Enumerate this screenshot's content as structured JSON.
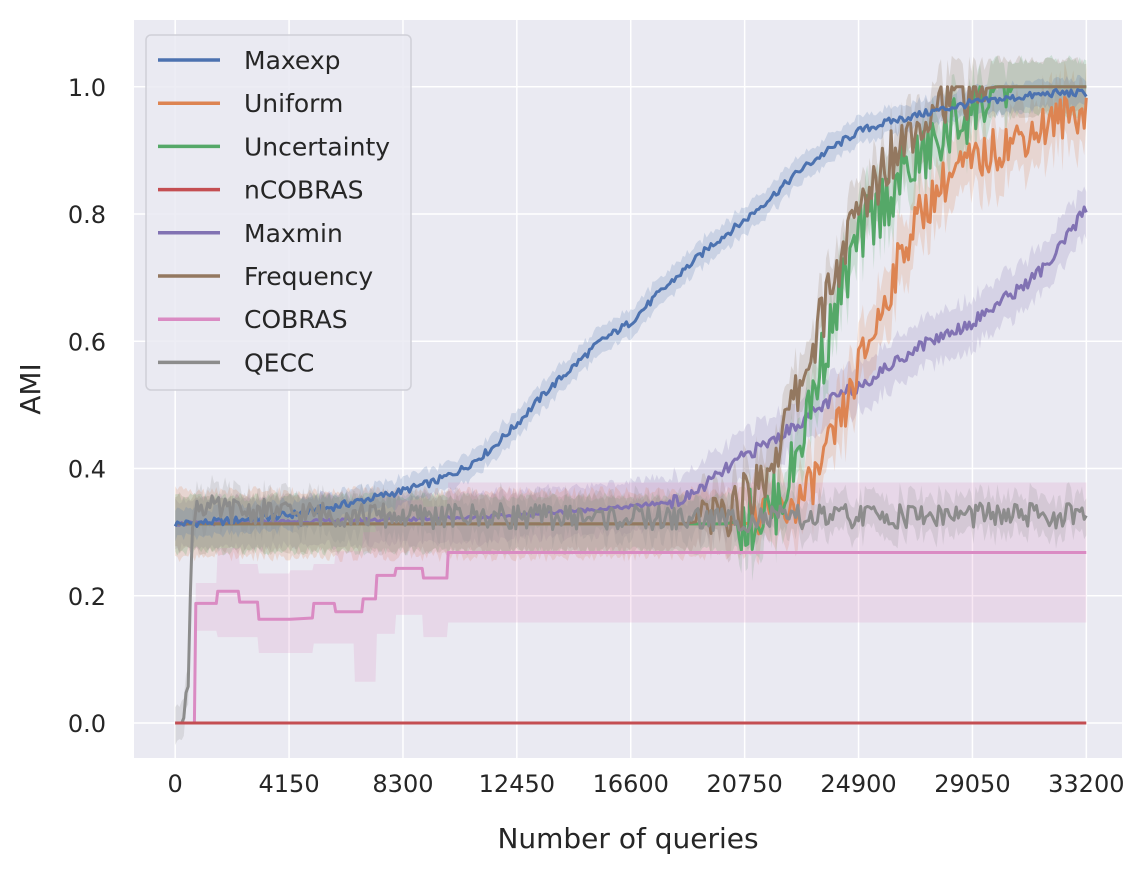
{
  "chart_data": {
    "type": "line",
    "xlabel": "Number of queries",
    "ylabel": "AMI",
    "xlim": [
      -1500,
      34500
    ],
    "ylim": [
      -0.055,
      1.105
    ],
    "xticks": [
      0,
      4150,
      8300,
      12450,
      16600,
      20750,
      24900,
      29050,
      33200
    ],
    "yticks": [
      0.0,
      0.2,
      0.4,
      0.6,
      0.8,
      1.0
    ],
    "ytick_labels": [
      "0.0",
      "0.2",
      "0.4",
      "0.6",
      "0.8",
      "1.0"
    ],
    "grid": true,
    "background": "#eaeaf2",
    "legend_position": "upper-left",
    "series": [
      {
        "name": "Maxexp",
        "color": "#4c72b0",
        "points": [
          [
            0,
            0.313
          ],
          [
            1000,
            0.315
          ],
          [
            2000,
            0.318
          ],
          [
            3000,
            0.322
          ],
          [
            4150,
            0.327
          ],
          [
            5000,
            0.333
          ],
          [
            6000,
            0.342
          ],
          [
            7000,
            0.352
          ],
          [
            8300,
            0.365
          ],
          [
            9500,
            0.38
          ],
          [
            10500,
            0.4
          ],
          [
            11500,
            0.43
          ],
          [
            12450,
            0.47
          ],
          [
            13500,
            0.52
          ],
          [
            14500,
            0.56
          ],
          [
            15500,
            0.6
          ],
          [
            16600,
            0.63
          ],
          [
            17500,
            0.67
          ],
          [
            18500,
            0.71
          ],
          [
            19500,
            0.75
          ],
          [
            20750,
            0.79
          ],
          [
            21800,
            0.83
          ],
          [
            22800,
            0.87
          ],
          [
            23800,
            0.9
          ],
          [
            24900,
            0.93
          ],
          [
            26000,
            0.945
          ],
          [
            27000,
            0.955
          ],
          [
            28000,
            0.965
          ],
          [
            29050,
            0.975
          ],
          [
            30000,
            0.98
          ],
          [
            31000,
            0.985
          ],
          [
            32000,
            0.99
          ],
          [
            33200,
            0.99
          ]
        ],
        "band": 0.025
      },
      {
        "name": "Uniform",
        "color": "#dd8452",
        "points": [
          [
            0,
            0.313
          ],
          [
            20750,
            0.313
          ],
          [
            21500,
            0.32
          ],
          [
            22000,
            0.33
          ],
          [
            22500,
            0.34
          ],
          [
            23000,
            0.36
          ],
          [
            23500,
            0.4
          ],
          [
            24000,
            0.45
          ],
          [
            24500,
            0.5
          ],
          [
            24900,
            0.56
          ],
          [
            25500,
            0.62
          ],
          [
            26000,
            0.68
          ],
          [
            26500,
            0.74
          ],
          [
            27000,
            0.79
          ],
          [
            27500,
            0.82
          ],
          [
            28000,
            0.85
          ],
          [
            28500,
            0.87
          ],
          [
            29050,
            0.88
          ],
          [
            29500,
            0.89
          ],
          [
            30000,
            0.905
          ],
          [
            30500,
            0.915
          ],
          [
            31000,
            0.925
          ],
          [
            31500,
            0.935
          ],
          [
            32000,
            0.945
          ],
          [
            32500,
            0.955
          ],
          [
            33200,
            0.965
          ]
        ],
        "band": 0.06
      },
      {
        "name": "Uncertainty",
        "color": "#55a868",
        "points": [
          [
            0,
            0.313
          ],
          [
            20000,
            0.313
          ],
          [
            21000,
            0.32
          ],
          [
            21500,
            0.33
          ],
          [
            22000,
            0.35
          ],
          [
            22500,
            0.4
          ],
          [
            23000,
            0.48
          ],
          [
            23500,
            0.56
          ],
          [
            24000,
            0.64
          ],
          [
            24500,
            0.71
          ],
          [
            24900,
            0.76
          ],
          [
            25500,
            0.8
          ],
          [
            26000,
            0.83
          ],
          [
            26500,
            0.86
          ],
          [
            27000,
            0.88
          ],
          [
            27500,
            0.9
          ],
          [
            28000,
            0.92
          ],
          [
            28500,
            0.945
          ],
          [
            29050,
            0.965
          ],
          [
            29500,
            0.98
          ],
          [
            30000,
            0.995
          ],
          [
            30500,
            1.0
          ],
          [
            33200,
            1.0
          ]
        ],
        "band": 0.05
      },
      {
        "name": "nCOBRAS",
        "color": "#c44e52",
        "points": [
          [
            0,
            0.0
          ],
          [
            33200,
            0.0
          ]
        ],
        "band": 0
      },
      {
        "name": "Maxmin",
        "color": "#8172b3",
        "points": [
          [
            0,
            0.313
          ],
          [
            8000,
            0.32
          ],
          [
            12000,
            0.325
          ],
          [
            16600,
            0.34
          ],
          [
            18500,
            0.35
          ],
          [
            19500,
            0.38
          ],
          [
            20750,
            0.42
          ],
          [
            22000,
            0.45
          ],
          [
            23000,
            0.48
          ],
          [
            24000,
            0.51
          ],
          [
            24900,
            0.53
          ],
          [
            26000,
            0.56
          ],
          [
            27000,
            0.59
          ],
          [
            28000,
            0.61
          ],
          [
            29050,
            0.63
          ],
          [
            30000,
            0.66
          ],
          [
            31000,
            0.69
          ],
          [
            32000,
            0.73
          ],
          [
            33200,
            0.81
          ]
        ],
        "band": 0.045
      },
      {
        "name": "Frequency",
        "color": "#937860",
        "points": [
          [
            0,
            0.313
          ],
          [
            18500,
            0.313
          ],
          [
            19500,
            0.32
          ],
          [
            20000,
            0.33
          ],
          [
            20750,
            0.35
          ],
          [
            21500,
            0.39
          ],
          [
            22000,
            0.44
          ],
          [
            22500,
            0.5
          ],
          [
            23000,
            0.56
          ],
          [
            23500,
            0.63
          ],
          [
            24000,
            0.7
          ],
          [
            24500,
            0.76
          ],
          [
            24900,
            0.8
          ],
          [
            25500,
            0.85
          ],
          [
            26000,
            0.89
          ],
          [
            26500,
            0.92
          ],
          [
            27000,
            0.945
          ],
          [
            27500,
            0.965
          ],
          [
            28000,
            0.985
          ],
          [
            29050,
            0.995
          ],
          [
            30000,
            1.0
          ],
          [
            33200,
            1.0
          ]
        ],
        "band": 0.05
      },
      {
        "name": "COBRAS",
        "color": "#da8bc3",
        "points": [
          [
            0,
            0.0
          ],
          [
            700,
            0.0
          ],
          [
            750,
            0.188
          ],
          [
            1500,
            0.188
          ],
          [
            1550,
            0.207
          ],
          [
            2300,
            0.207
          ],
          [
            2350,
            0.19
          ],
          [
            3000,
            0.19
          ],
          [
            3050,
            0.163
          ],
          [
            4150,
            0.163
          ],
          [
            4200,
            0.163
          ],
          [
            5000,
            0.165
          ],
          [
            5050,
            0.188
          ],
          [
            5800,
            0.188
          ],
          [
            5850,
            0.175
          ],
          [
            6800,
            0.175
          ],
          [
            6850,
            0.195
          ],
          [
            7300,
            0.195
          ],
          [
            7350,
            0.232
          ],
          [
            8000,
            0.232
          ],
          [
            8050,
            0.243
          ],
          [
            9000,
            0.243
          ],
          [
            9050,
            0.228
          ],
          [
            9900,
            0.228
          ],
          [
            9950,
            0.268
          ],
          [
            33200,
            0.268
          ]
        ],
        "band_lower": [
          [
            0,
            0.0
          ],
          [
            700,
            0.0
          ],
          [
            750,
            0.145
          ],
          [
            1500,
            0.145
          ],
          [
            1550,
            0.135
          ],
          [
            3000,
            0.135
          ],
          [
            3050,
            0.11
          ],
          [
            5000,
            0.11
          ],
          [
            5050,
            0.125
          ],
          [
            6500,
            0.125
          ],
          [
            6550,
            0.065
          ],
          [
            7300,
            0.065
          ],
          [
            7350,
            0.14
          ],
          [
            8000,
            0.14
          ],
          [
            8050,
            0.17
          ],
          [
            9000,
            0.17
          ],
          [
            9050,
            0.135
          ],
          [
            9900,
            0.135
          ],
          [
            9950,
            0.158
          ],
          [
            33200,
            0.158
          ]
        ],
        "band_upper": [
          [
            0,
            0.0
          ],
          [
            700,
            0.0
          ],
          [
            750,
            0.22
          ],
          [
            1500,
            0.22
          ],
          [
            1550,
            0.275
          ],
          [
            2300,
            0.275
          ],
          [
            2350,
            0.25
          ],
          [
            3000,
            0.25
          ],
          [
            3050,
            0.235
          ],
          [
            4150,
            0.235
          ],
          [
            4200,
            0.24
          ],
          [
            5000,
            0.24
          ],
          [
            5050,
            0.25
          ],
          [
            5800,
            0.25
          ],
          [
            5850,
            0.27
          ],
          [
            6800,
            0.27
          ],
          [
            6850,
            0.3
          ],
          [
            7300,
            0.3
          ],
          [
            7350,
            0.33
          ],
          [
            8000,
            0.33
          ],
          [
            8050,
            0.35
          ],
          [
            9000,
            0.35
          ],
          [
            9050,
            0.34
          ],
          [
            9900,
            0.34
          ],
          [
            9950,
            0.378
          ],
          [
            33200,
            0.378
          ]
        ]
      },
      {
        "name": "QECC",
        "color": "#8c8c8c",
        "points": [
          [
            0,
            0.0
          ],
          [
            300,
            0.0
          ],
          [
            400,
            0.05
          ],
          [
            500,
            0.06
          ],
          [
            550,
            0.2
          ],
          [
            650,
            0.33
          ],
          [
            800,
            0.345
          ],
          [
            1500,
            0.335
          ],
          [
            4150,
            0.33
          ],
          [
            8300,
            0.325
          ],
          [
            12450,
            0.325
          ],
          [
            16600,
            0.322
          ],
          [
            20750,
            0.32
          ],
          [
            24900,
            0.325
          ],
          [
            29050,
            0.327
          ],
          [
            33200,
            0.325
          ]
        ],
        "band": 0.035
      }
    ]
  }
}
